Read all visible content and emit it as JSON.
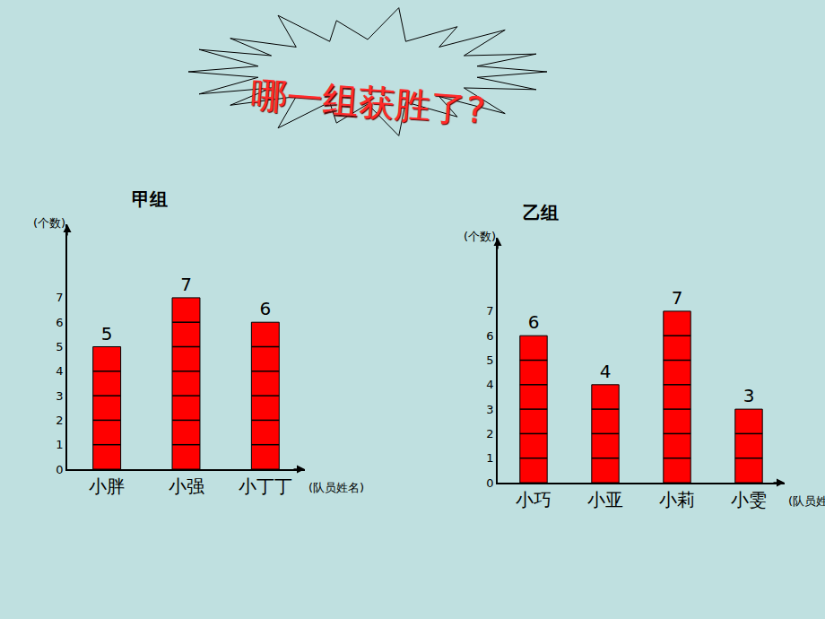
{
  "title": "哪一组获胜了?",
  "chart_data": [
    {
      "type": "bar",
      "title": "甲组",
      "y_label": "(个数)",
      "x_label": "(队员姓名)",
      "categories": [
        "小胖",
        "小强",
        "小丁丁"
      ],
      "values": [
        5,
        7,
        6
      ],
      "color": "#ff0000",
      "ylim": [
        0,
        10
      ],
      "yticks": [
        0,
        1,
        2,
        3,
        4,
        5,
        6,
        7
      ],
      "grid": false,
      "data_labels": true
    },
    {
      "type": "bar",
      "title": "乙组",
      "y_label": "(个数)",
      "x_label": "(队员姓名)",
      "categories": [
        "小巧",
        "小亚",
        "小莉",
        "小雯"
      ],
      "values": [
        6,
        4,
        7,
        3
      ],
      "color": "#ff0000",
      "ylim": [
        0,
        10
      ],
      "yticks": [
        0,
        1,
        2,
        3,
        4,
        5,
        6,
        7
      ],
      "grid": false,
      "data_labels": true
    }
  ]
}
